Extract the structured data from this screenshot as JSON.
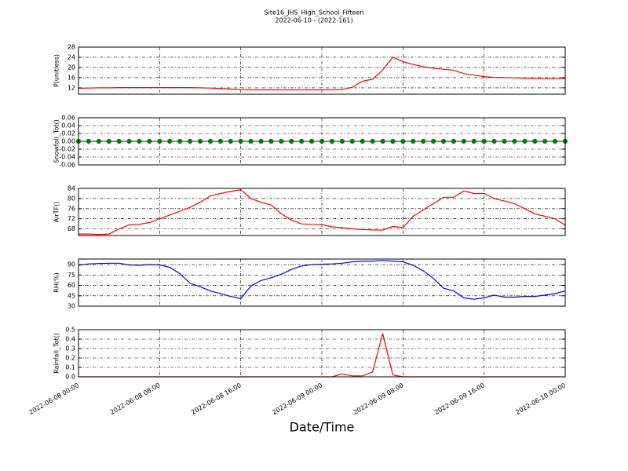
{
  "chart_data": [
    {
      "type": "line",
      "title": "Site16_JHS_High_School_Fifteen",
      "subtitle": "2022-06-10 - (2022-161)",
      "ylabel": "P(unitless)",
      "color": "#ff0000",
      "x": [
        "2022-06-08 00:00",
        "2022-06-08 01:00",
        "2022-06-08 02:00",
        "2022-06-08 03:00",
        "2022-06-08 04:00",
        "2022-06-08 05:00",
        "2022-06-08 06:00",
        "2022-06-08 07:00",
        "2022-06-08 08:00",
        "2022-06-08 09:00",
        "2022-06-08 10:00",
        "2022-06-08 11:00",
        "2022-06-08 12:00",
        "2022-06-08 13:00",
        "2022-06-08 14:00",
        "2022-06-08 15:00",
        "2022-06-08 16:00",
        "2022-06-08 17:00",
        "2022-06-08 18:00",
        "2022-06-08 19:00",
        "2022-06-08 20:00",
        "2022-06-08 21:00",
        "2022-06-08 22:00",
        "2022-06-08 23:00",
        "2022-06-09 00:00",
        "2022-06-09 01:00",
        "2022-06-09 02:00",
        "2022-06-09 03:00",
        "2022-06-09 04:00",
        "2022-06-09 05:00",
        "2022-06-09 06:00",
        "2022-06-09 07:00",
        "2022-06-09 08:00",
        "2022-06-09 09:00",
        "2022-06-09 10:00",
        "2022-06-09 11:00",
        "2022-06-09 12:00",
        "2022-06-09 13:00",
        "2022-06-09 14:00",
        "2022-06-09 15:00",
        "2022-06-09 16:00",
        "2022-06-09 17:00",
        "2022-06-09 18:00",
        "2022-06-09 19:00",
        "2022-06-09 20:00",
        "2022-06-09 21:00",
        "2022-06-09 22:00",
        "2022-06-09 23:00",
        "2022-06-10 00:00"
      ],
      "values": [
        11.8,
        11.9,
        12.0,
        12.0,
        12.1,
        12.1,
        12.1,
        12.1,
        12.1,
        12.1,
        12.1,
        12.1,
        12.0,
        11.9,
        11.7,
        11.5,
        11.3,
        11.2,
        11.2,
        11.2,
        11.2,
        11.2,
        11.2,
        11.2,
        11.2,
        11.2,
        11.3,
        12.2,
        14.6,
        15.4,
        19.0,
        24.0,
        22.3,
        21.2,
        20.3,
        19.7,
        19.3,
        18.9,
        17.6,
        17.0,
        16.4,
        16.1,
        16.0,
        15.9,
        15.8,
        15.7,
        15.6,
        15.6,
        15.6
      ],
      "xlim": [
        "2022-06-08 00:00",
        "2022-06-10 00:00"
      ],
      "xticks": [
        "2022-06-08 00:00",
        "2022-06-08 08:00",
        "2022-06-08 16:00",
        "2022-06-09 00:00",
        "2022-06-09 08:00",
        "2022-06-09 16:00",
        "2022-06-10 00:00"
      ],
      "ylim": [
        9.5,
        28
      ],
      "yticks": [
        12,
        16,
        20,
        24,
        28
      ],
      "grid": true
    },
    {
      "type": "line",
      "ylabel": "Snowfall_Tot()",
      "color": "#008000",
      "markers": true,
      "x": [
        "2022-06-08 00:00",
        "2022-06-08 01:00",
        "2022-06-08 02:00",
        "2022-06-08 03:00",
        "2022-06-08 04:00",
        "2022-06-08 05:00",
        "2022-06-08 06:00",
        "2022-06-08 07:00",
        "2022-06-08 08:00",
        "2022-06-08 09:00",
        "2022-06-08 10:00",
        "2022-06-08 11:00",
        "2022-06-08 12:00",
        "2022-06-08 13:00",
        "2022-06-08 14:00",
        "2022-06-08 15:00",
        "2022-06-08 16:00",
        "2022-06-08 17:00",
        "2022-06-08 18:00",
        "2022-06-08 19:00",
        "2022-06-08 20:00",
        "2022-06-08 21:00",
        "2022-06-08 22:00",
        "2022-06-08 23:00",
        "2022-06-09 00:00",
        "2022-06-09 01:00",
        "2022-06-09 02:00",
        "2022-06-09 03:00",
        "2022-06-09 04:00",
        "2022-06-09 05:00",
        "2022-06-09 06:00",
        "2022-06-09 07:00",
        "2022-06-09 08:00",
        "2022-06-09 09:00",
        "2022-06-09 10:00",
        "2022-06-09 11:00",
        "2022-06-09 12:00",
        "2022-06-09 13:00",
        "2022-06-09 14:00",
        "2022-06-09 15:00",
        "2022-06-09 16:00",
        "2022-06-09 17:00",
        "2022-06-09 18:00",
        "2022-06-09 19:00",
        "2022-06-09 20:00",
        "2022-06-09 21:00",
        "2022-06-09 22:00",
        "2022-06-09 23:00",
        "2022-06-10 00:00"
      ],
      "values": [
        0,
        0,
        0,
        0,
        0,
        0,
        0,
        0,
        0,
        0,
        0,
        0,
        0,
        0,
        0,
        0,
        0,
        0,
        0,
        0,
        0,
        0,
        0,
        0,
        0,
        0,
        0,
        0,
        0,
        0,
        0,
        0,
        0,
        0,
        0,
        0,
        0,
        0,
        0,
        0,
        0,
        0,
        0,
        0,
        0,
        0,
        0,
        0,
        0
      ],
      "xlim": [
        "2022-06-08 00:00",
        "2022-06-10 00:00"
      ],
      "xticks": [
        "2022-06-08 00:00",
        "2022-06-08 08:00",
        "2022-06-08 16:00",
        "2022-06-09 00:00",
        "2022-06-09 08:00",
        "2022-06-09 16:00",
        "2022-06-10 00:00"
      ],
      "ylim": [
        -0.06,
        0.06
      ],
      "yticks": [
        -0.06,
        -0.04,
        -0.02,
        {
          "value": 0,
          "label": "0.00"
        },
        0.02,
        0.04,
        0.06
      ],
      "grid": true
    },
    {
      "type": "line",
      "ylabel": "AirTF()",
      "color": "#ff0000",
      "x": [
        "2022-06-08 00:00",
        "2022-06-08 01:00",
        "2022-06-08 02:00",
        "2022-06-08 03:00",
        "2022-06-08 04:00",
        "2022-06-08 05:00",
        "2022-06-08 06:00",
        "2022-06-08 07:00",
        "2022-06-08 08:00",
        "2022-06-08 09:00",
        "2022-06-08 10:00",
        "2022-06-08 11:00",
        "2022-06-08 12:00",
        "2022-06-08 13:00",
        "2022-06-08 14:00",
        "2022-06-08 15:00",
        "2022-06-08 16:00",
        "2022-06-08 17:00",
        "2022-06-08 18:00",
        "2022-06-08 19:00",
        "2022-06-08 20:00",
        "2022-06-08 21:00",
        "2022-06-08 22:00",
        "2022-06-08 23:00",
        "2022-06-09 00:00",
        "2022-06-09 01:00",
        "2022-06-09 02:00",
        "2022-06-09 03:00",
        "2022-06-09 04:00",
        "2022-06-09 05:00",
        "2022-06-09 06:00",
        "2022-06-09 07:00",
        "2022-06-09 08:00",
        "2022-06-09 09:00",
        "2022-06-09 10:00",
        "2022-06-09 11:00",
        "2022-06-09 12:00",
        "2022-06-09 13:00",
        "2022-06-09 14:00",
        "2022-06-09 15:00",
        "2022-06-09 16:00",
        "2022-06-09 17:00",
        "2022-06-09 18:00",
        "2022-06-09 19:00",
        "2022-06-09 20:00",
        "2022-06-09 21:00",
        "2022-06-09 22:00",
        "2022-06-09 23:00",
        "2022-06-10 00:00"
      ],
      "values": [
        66,
        66,
        65.8,
        66,
        68,
        69.6,
        69.8,
        70.5,
        72,
        73.5,
        75,
        76.5,
        78.5,
        81,
        82,
        82.8,
        83.5,
        80,
        78.5,
        77.5,
        74,
        71.5,
        70,
        69.8,
        69.7,
        68.8,
        68.5,
        68,
        67.8,
        67.6,
        67.5,
        69,
        68.5,
        73,
        75.5,
        78,
        80.5,
        80.5,
        83,
        82,
        82,
        80,
        79,
        78,
        76,
        74,
        73,
        72,
        69.5
      ],
      "xlim": [
        "2022-06-08 00:00",
        "2022-06-10 00:00"
      ],
      "xticks": [
        "2022-06-08 00:00",
        "2022-06-08 08:00",
        "2022-06-08 16:00",
        "2022-06-09 00:00",
        "2022-06-09 08:00",
        "2022-06-09 16:00",
        "2022-06-10 00:00"
      ],
      "ylim": [
        65.4,
        84
      ],
      "yticks": [
        68,
        72,
        76,
        80,
        84
      ],
      "grid": true
    },
    {
      "type": "line",
      "ylabel": "RH(%)",
      "color": "#0000ff",
      "x": [
        "2022-06-08 00:00",
        "2022-06-08 01:00",
        "2022-06-08 02:00",
        "2022-06-08 03:00",
        "2022-06-08 04:00",
        "2022-06-08 05:00",
        "2022-06-08 06:00",
        "2022-06-08 07:00",
        "2022-06-08 08:00",
        "2022-06-08 09:00",
        "2022-06-08 10:00",
        "2022-06-08 11:00",
        "2022-06-08 12:00",
        "2022-06-08 13:00",
        "2022-06-08 14:00",
        "2022-06-08 15:00",
        "2022-06-08 16:00",
        "2022-06-08 17:00",
        "2022-06-08 18:00",
        "2022-06-08 19:00",
        "2022-06-08 20:00",
        "2022-06-08 21:00",
        "2022-06-08 22:00",
        "2022-06-08 23:00",
        "2022-06-09 00:00",
        "2022-06-09 01:00",
        "2022-06-09 02:00",
        "2022-06-09 03:00",
        "2022-06-09 04:00",
        "2022-06-09 05:00",
        "2022-06-09 06:00",
        "2022-06-09 07:00",
        "2022-06-09 08:00",
        "2022-06-09 09:00",
        "2022-06-09 10:00",
        "2022-06-09 11:00",
        "2022-06-09 12:00",
        "2022-06-09 13:00",
        "2022-06-09 14:00",
        "2022-06-09 15:00",
        "2022-06-09 16:00",
        "2022-06-09 17:00",
        "2022-06-09 18:00",
        "2022-06-09 19:00",
        "2022-06-09 20:00",
        "2022-06-09 21:00",
        "2022-06-09 22:00",
        "2022-06-09 23:00",
        "2022-06-10 00:00"
      ],
      "values": [
        89,
        91,
        91.5,
        92,
        92,
        89.5,
        89,
        90,
        89.5,
        86,
        77,
        63,
        58,
        52,
        48,
        44,
        41,
        59,
        67,
        71,
        76,
        83,
        88,
        90,
        90.5,
        91,
        92,
        94,
        95,
        95,
        96,
        95,
        94,
        89,
        81,
        70,
        56,
        52,
        42,
        40,
        42,
        46,
        43,
        43,
        44,
        44,
        46,
        48,
        52
      ],
      "xlim": [
        "2022-06-08 00:00",
        "2022-06-10 00:00"
      ],
      "xticks": [
        "2022-06-08 00:00",
        "2022-06-08 08:00",
        "2022-06-08 16:00",
        "2022-06-09 00:00",
        "2022-06-09 08:00",
        "2022-06-09 16:00",
        "2022-06-10 00:00"
      ],
      "ylim": [
        30,
        98
      ],
      "yticks": [
        30,
        45,
        60,
        75,
        90
      ],
      "grid": true
    },
    {
      "type": "line",
      "ylabel": "Rainfall_Tot()",
      "xlabel": "Date/Time",
      "color": "#ff0000",
      "x": [
        "2022-06-08 00:00",
        "2022-06-08 01:00",
        "2022-06-08 02:00",
        "2022-06-08 03:00",
        "2022-06-08 04:00",
        "2022-06-08 05:00",
        "2022-06-08 06:00",
        "2022-06-08 07:00",
        "2022-06-08 08:00",
        "2022-06-08 09:00",
        "2022-06-08 10:00",
        "2022-06-08 11:00",
        "2022-06-08 12:00",
        "2022-06-08 13:00",
        "2022-06-08 14:00",
        "2022-06-08 15:00",
        "2022-06-08 16:00",
        "2022-06-08 17:00",
        "2022-06-08 18:00",
        "2022-06-08 19:00",
        "2022-06-08 20:00",
        "2022-06-08 21:00",
        "2022-06-08 22:00",
        "2022-06-08 23:00",
        "2022-06-09 00:00",
        "2022-06-09 01:00",
        "2022-06-09 02:00",
        "2022-06-09 03:00",
        "2022-06-09 04:00",
        "2022-06-09 05:00",
        "2022-06-09 06:00",
        "2022-06-09 07:00",
        "2022-06-09 08:00",
        "2022-06-09 09:00",
        "2022-06-09 10:00",
        "2022-06-09 11:00",
        "2022-06-09 12:00",
        "2022-06-09 13:00",
        "2022-06-09 14:00",
        "2022-06-09 15:00",
        "2022-06-09 16:00",
        "2022-06-09 17:00",
        "2022-06-09 18:00",
        "2022-06-09 19:00",
        "2022-06-09 20:00",
        "2022-06-09 21:00",
        "2022-06-09 22:00",
        "2022-06-09 23:00",
        "2022-06-10 00:00"
      ],
      "values": [
        0,
        0,
        0,
        0,
        0,
        0,
        0,
        0,
        0,
        0,
        0,
        0,
        0,
        0,
        0,
        0,
        0,
        0,
        0,
        0,
        0,
        0,
        0,
        0,
        0,
        0,
        0.03,
        0.01,
        0.01,
        0.05,
        0.46,
        0.02,
        0,
        0,
        0,
        0,
        0,
        0,
        0,
        0,
        0,
        0,
        0,
        0,
        0,
        0,
        0,
        0,
        0
      ],
      "xlim": [
        "2022-06-08 00:00",
        "2022-06-10 00:00"
      ],
      "xticks": [
        "2022-06-08 00:00",
        "2022-06-08 08:00",
        "2022-06-08 16:00",
        "2022-06-09 00:00",
        "2022-06-09 08:00",
        "2022-06-09 16:00",
        "2022-06-10 00:00"
      ],
      "xticklabels": true,
      "ylim": [
        0,
        0.5
      ],
      "yticks": [
        {
          "value": 0,
          "label": "0.0"
        },
        0.1,
        0.2,
        0.3,
        0.4,
        0.5
      ],
      "grid": true
    }
  ]
}
